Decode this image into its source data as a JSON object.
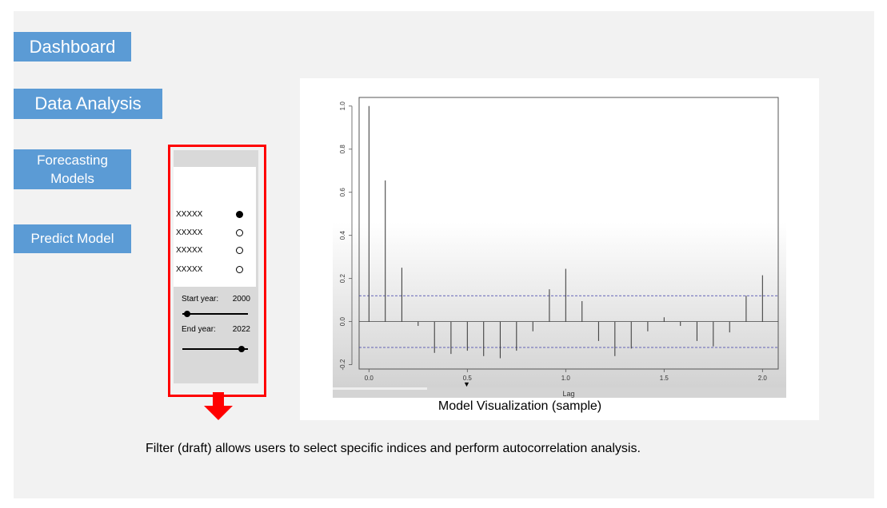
{
  "nav": {
    "dashboard": "Dashboard",
    "data_analysis": "Data Analysis",
    "forecasting_models": "Forecasting\nModels",
    "predict_model": "Predict Model"
  },
  "filter": {
    "options": [
      {
        "label": "XXXXX",
        "selected": true
      },
      {
        "label": "XXXXX",
        "selected": false
      },
      {
        "label": "XXXXX",
        "selected": false
      },
      {
        "label": "XXXXX",
        "selected": false
      }
    ],
    "start_year_label": "Start year:",
    "start_year_value": "2000",
    "end_year_label": "End year:",
    "end_year_value": "2022",
    "year_range": [
      2000,
      2022
    ],
    "start_slider": 2000,
    "end_slider": 2022
  },
  "colors": {
    "nav_button": "#5b9bd5",
    "highlight_outline": "#ff0000",
    "arrow": "#ff0000",
    "confidence_line": "#3a3aa8"
  },
  "chart_data": {
    "type": "bar",
    "xlabel": "Lag",
    "ylabel": "",
    "xlim": [
      -0.05,
      2.08
    ],
    "ylim": [
      -0.22,
      1.04
    ],
    "x_ticks": [
      0.0,
      0.5,
      1.0,
      1.5,
      2.0
    ],
    "x_tick_labels": [
      "0.0",
      "0.5",
      "1.0",
      "1.5",
      "2.0"
    ],
    "y_ticks": [
      -0.2,
      0.0,
      0.2,
      0.4,
      0.6,
      0.8,
      1.0
    ],
    "y_tick_labels": [
      "-0.2",
      "0.0",
      "0.2",
      "0.4",
      "0.6",
      "0.8",
      "1.0"
    ],
    "confidence_bound": 0.12,
    "x": [
      0.0,
      0.083,
      0.167,
      0.25,
      0.333,
      0.417,
      0.5,
      0.583,
      0.667,
      0.75,
      0.833,
      0.917,
      1.0,
      1.083,
      1.167,
      1.25,
      1.333,
      1.417,
      1.5,
      1.583,
      1.667,
      1.75,
      1.833,
      1.917,
      2.0
    ],
    "values": [
      1.0,
      0.655,
      0.25,
      -0.02,
      -0.145,
      -0.15,
      -0.135,
      -0.16,
      -0.17,
      -0.135,
      -0.045,
      0.15,
      0.245,
      0.095,
      -0.09,
      -0.16,
      -0.125,
      -0.045,
      0.02,
      -0.02,
      -0.09,
      -0.115,
      -0.05,
      0.12,
      0.215
    ]
  },
  "plot_caption": "Model Visualization (sample)",
  "footnote": "Filter (draft) allows users to select specific indices and perform autocorrelation analysis."
}
